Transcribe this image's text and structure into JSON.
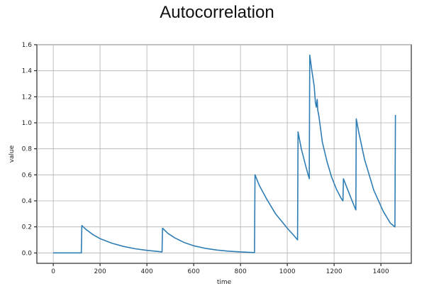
{
  "chart_data": {
    "type": "line",
    "title": "Autocorrelation",
    "xlabel": "time",
    "ylabel": "value",
    "xlim": [
      -70,
      1530
    ],
    "ylim": [
      -0.08,
      1.6
    ],
    "xticks": [
      0,
      200,
      400,
      600,
      800,
      1000,
      1200,
      1400
    ],
    "yticks": [
      0.0,
      0.2,
      0.4,
      0.6,
      0.8,
      1.0,
      1.2,
      1.4,
      1.6
    ],
    "xtick_labels": [
      "0",
      "200",
      "400",
      "600",
      "800",
      "1000",
      "1200",
      "1400"
    ],
    "ytick_labels": [
      "0.0",
      "0.2",
      "0.4",
      "0.6",
      "0.8",
      "1.0",
      "1.2",
      "1.4",
      "1.6"
    ],
    "grid": true,
    "line_color": "#2f7db5",
    "series": [
      {
        "x": [
          0,
          120,
          122,
          140,
          170,
          200,
          250,
          300,
          350,
          400,
          440,
          465,
          467,
          490,
          520,
          560,
          600,
          650,
          700,
          750,
          800,
          855,
          860,
          862,
          880,
          910,
          950,
          1000,
          1030,
          1044,
          1046,
          1060,
          1080,
          1094,
          1096,
          1105,
          1115,
          1120,
          1124,
          1128,
          1130,
          1135,
          1150,
          1170,
          1190,
          1210,
          1230,
          1238,
          1240,
          1255,
          1275,
          1293,
          1295,
          1305,
          1330,
          1370,
          1410,
          1440,
          1460,
          1462
        ],
        "y": [
          0.0,
          0.0,
          0.21,
          0.18,
          0.14,
          0.11,
          0.075,
          0.05,
          0.032,
          0.02,
          0.012,
          0.008,
          0.19,
          0.15,
          0.115,
          0.08,
          0.055,
          0.035,
          0.022,
          0.013,
          0.008,
          0.003,
          0.003,
          0.6,
          0.52,
          0.42,
          0.3,
          0.19,
          0.13,
          0.1,
          0.93,
          0.8,
          0.66,
          0.57,
          1.52,
          1.4,
          1.28,
          1.16,
          1.12,
          1.18,
          1.1,
          1.05,
          0.85,
          0.7,
          0.58,
          0.49,
          0.42,
          0.4,
          0.57,
          0.5,
          0.41,
          0.33,
          1.03,
          0.93,
          0.72,
          0.48,
          0.32,
          0.23,
          0.2,
          1.06
        ]
      }
    ]
  }
}
